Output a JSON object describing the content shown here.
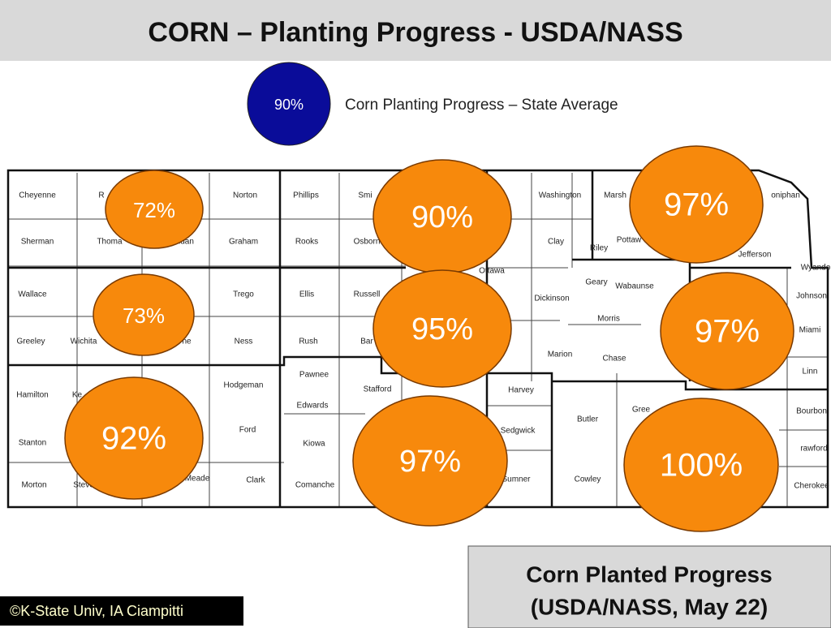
{
  "title": "CORN – Planting Progress - USDA/NASS",
  "legend": {
    "label": "90%",
    "text": "Corn Planting Progress – State Average"
  },
  "counties": [
    "Cheyenne",
    "R",
    "Norton",
    "Phillips",
    "Smi",
    "Washington",
    "Marsh",
    "oniphan",
    "Sherman",
    "Thoma",
    "eridan",
    "Graham",
    "Rooks",
    "Osborn",
    "Clay",
    "Riley",
    "Pottaw",
    "Jefferson",
    "Wyando",
    "Ottawa",
    "Geary",
    "Wabaunse",
    "Johnson",
    "Wallace",
    "Trego",
    "Ellis",
    "Russell",
    "Dickinson",
    "Morris",
    "Greeley",
    "Wichita",
    "ne",
    "Ness",
    "Rush",
    "Bar",
    "on",
    "Marion",
    "Chase",
    "Miami",
    "Linn",
    "Pawnee",
    "Hodgeman",
    "Stafford",
    "Harvey",
    "Hamilton",
    "Ke",
    "Edwards",
    "Butler",
    "Gree",
    "Bourbon",
    "Sedgwick",
    "Ford",
    "Stanton",
    "Kiowa",
    "rawford",
    "Meade",
    "Clark",
    "Morton",
    "Steve",
    "Comanche",
    "Sumner",
    "Cowley",
    "Cherokee"
  ],
  "districts": [
    "72%",
    "73%",
    "92%",
    "90%",
    "95%",
    "97%",
    "97%",
    "97%",
    "100%"
  ],
  "copyright": "©K-State Univ, IA Ciampitti",
  "footer": {
    "line1": "Corn Planted Progress",
    "line2": "(USDA/NASS, May 22)"
  }
}
